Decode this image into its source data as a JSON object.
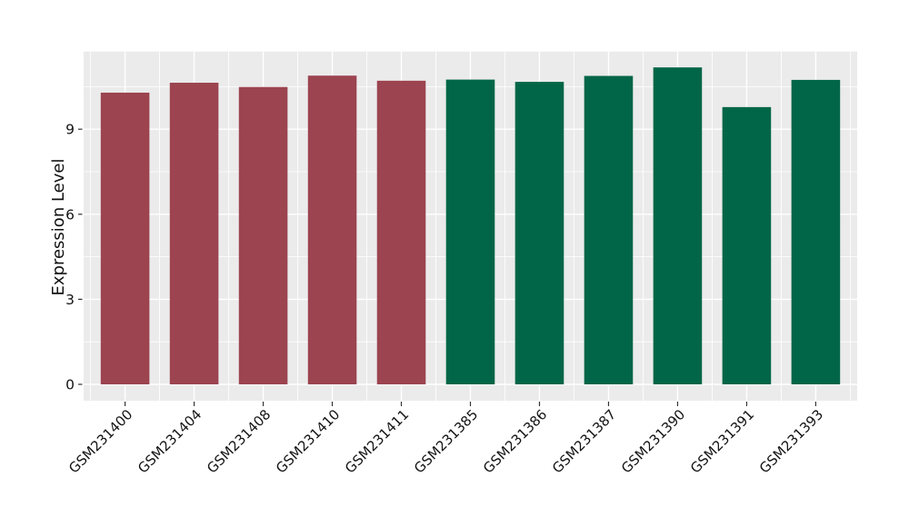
{
  "chart_data": {
    "type": "bar",
    "title": "",
    "xlabel": "",
    "ylabel": "Expression Level",
    "categories": [
      "GSM231400",
      "GSM231404",
      "GSM231408",
      "GSM231410",
      "GSM231411",
      "GSM231385",
      "GSM231386",
      "GSM231387",
      "GSM231390",
      "GSM231391",
      "GSM231393"
    ],
    "values": [
      10.29,
      10.64,
      10.49,
      10.89,
      10.71,
      10.75,
      10.67,
      10.88,
      11.18,
      9.78,
      10.74
    ],
    "groups": [
      "groupA",
      "groupA",
      "groupA",
      "groupA",
      "groupA",
      "groupB",
      "groupB",
      "groupB",
      "groupB",
      "groupB",
      "groupB"
    ],
    "group_colors": {
      "groupA": "#9C4450",
      "groupB": "#016647"
    },
    "yticks": [
      0,
      3,
      6,
      9
    ],
    "ytick_minor_step": 1.5,
    "ylim": [
      0,
      11.74
    ],
    "grid": "major+minor",
    "legend": "none",
    "panel_bg": "#EBEBEB",
    "grid_color": "#FFFFFF",
    "axis_text_color": "#141414",
    "tick_color": "#333333",
    "bar_width_ratio": 0.705,
    "x_tick_label_rotation": -45
  }
}
